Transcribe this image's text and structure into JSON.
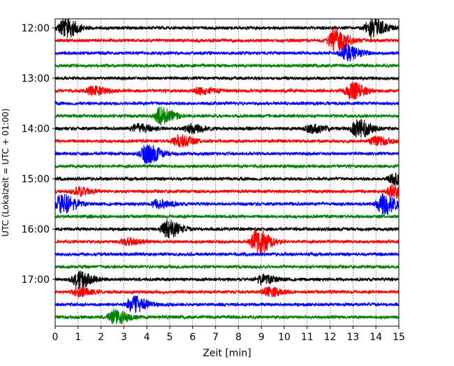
{
  "chart_data": {
    "type": "helicorder",
    "xlabel": "Zeit  [min]",
    "ylabel": "UTC (Lokalzeit = UTC + 01:00)",
    "xlim": [
      0,
      15
    ],
    "x_ticks": [
      "0",
      "1",
      "2",
      "3",
      "4",
      "5",
      "6",
      "7",
      "8",
      "9",
      "10",
      "11",
      "12",
      "13",
      "14",
      "15"
    ],
    "y_tick_labels": [
      "12:00",
      "13:00",
      "14:00",
      "15:00",
      "16:00",
      "17:00"
    ],
    "grid": "vertical dotted at every minute",
    "trace_interval_min": 15,
    "color_cycle": [
      "#000000",
      "#ff0000",
      "#0000ff",
      "#008000"
    ],
    "traces": [
      {
        "start": "12:00",
        "events": [
          {
            "t": 0.4,
            "amp": 1.2
          },
          {
            "t": 13.8,
            "amp": 1.2
          }
        ]
      },
      {
        "start": "12:15",
        "events": [
          {
            "t": 12.2,
            "amp": 1.4
          }
        ]
      },
      {
        "start": "12:30",
        "events": [
          {
            "t": 12.7,
            "amp": 0.9
          }
        ]
      },
      {
        "start": "12:45",
        "events": []
      },
      {
        "start": "13:00",
        "events": []
      },
      {
        "start": "13:15",
        "events": [
          {
            "t": 1.6,
            "amp": 0.5
          },
          {
            "t": 6.3,
            "amp": 0.4
          },
          {
            "t": 12.9,
            "amp": 1.0
          }
        ]
      },
      {
        "start": "13:30",
        "events": []
      },
      {
        "start": "13:45",
        "events": [
          {
            "t": 4.6,
            "amp": 1.0
          }
        ]
      },
      {
        "start": "14:00",
        "events": [
          {
            "t": 3.6,
            "amp": 0.5
          },
          {
            "t": 5.9,
            "amp": 0.5
          },
          {
            "t": 11.2,
            "amp": 0.5
          },
          {
            "t": 13.2,
            "amp": 1.1
          }
        ]
      },
      {
        "start": "14:15",
        "events": [
          {
            "t": 5.4,
            "amp": 0.7
          },
          {
            "t": 14.0,
            "amp": 0.5
          }
        ]
      },
      {
        "start": "14:30",
        "events": [
          {
            "t": 4.0,
            "amp": 1.1
          }
        ]
      },
      {
        "start": "14:45",
        "events": []
      },
      {
        "start": "15:00",
        "events": [
          {
            "t": 14.8,
            "amp": 0.6
          }
        ]
      },
      {
        "start": "15:15",
        "events": [
          {
            "t": 1.0,
            "amp": 0.5
          },
          {
            "t": 14.8,
            "amp": 0.9
          }
        ]
      },
      {
        "start": "15:30",
        "events": [
          {
            "t": 0.3,
            "amp": 1.2
          },
          {
            "t": 4.5,
            "amp": 0.5
          },
          {
            "t": 14.3,
            "amp": 1.2
          }
        ]
      },
      {
        "start": "15:45",
        "events": []
      },
      {
        "start": "16:00",
        "events": [
          {
            "t": 4.9,
            "amp": 1.0
          }
        ]
      },
      {
        "start": "16:15",
        "events": [
          {
            "t": 3.1,
            "amp": 0.4
          },
          {
            "t": 8.8,
            "amp": 1.5
          }
        ]
      },
      {
        "start": "16:30",
        "events": []
      },
      {
        "start": "16:45",
        "events": []
      },
      {
        "start": "17:00",
        "events": [
          {
            "t": 1.0,
            "amp": 1.0
          },
          {
            "t": 9.0,
            "amp": 0.5
          }
        ]
      },
      {
        "start": "17:15",
        "events": [
          {
            "t": 1.0,
            "amp": 0.5
          },
          {
            "t": 9.3,
            "amp": 0.5
          }
        ]
      },
      {
        "start": "17:30",
        "events": [
          {
            "t": 3.4,
            "amp": 1.0
          }
        ]
      },
      {
        "start": "17:45",
        "events": [
          {
            "t": 2.6,
            "amp": 0.9
          }
        ]
      }
    ]
  }
}
